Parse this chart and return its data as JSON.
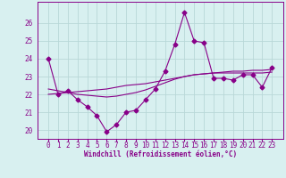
{
  "xlabel": "Windchill (Refroidissement éolien,°C)",
  "background_color": "#d8f0f0",
  "grid_color": "#b8d8d8",
  "line_color": "#880088",
  "hours": [
    0,
    1,
    2,
    3,
    4,
    5,
    6,
    7,
    8,
    9,
    10,
    11,
    12,
    13,
    14,
    15,
    16,
    17,
    18,
    19,
    20,
    21,
    22,
    23
  ],
  "main_values": [
    24.0,
    22.0,
    22.2,
    21.7,
    21.3,
    20.8,
    19.9,
    20.3,
    21.0,
    21.1,
    21.7,
    22.3,
    23.3,
    24.8,
    26.6,
    25.0,
    24.9,
    22.9,
    22.9,
    22.8,
    23.1,
    23.1,
    22.4,
    23.5
  ],
  "smooth1": [
    22.0,
    22.05,
    22.1,
    22.15,
    22.2,
    22.25,
    22.3,
    22.4,
    22.5,
    22.55,
    22.6,
    22.7,
    22.8,
    22.9,
    23.0,
    23.1,
    23.15,
    23.2,
    23.25,
    23.3,
    23.3,
    23.35,
    23.35,
    23.4
  ],
  "smooth2": [
    22.3,
    22.2,
    22.1,
    22.0,
    21.95,
    21.9,
    21.85,
    21.9,
    22.0,
    22.1,
    22.25,
    22.45,
    22.65,
    22.85,
    23.0,
    23.1,
    23.15,
    23.2,
    23.2,
    23.2,
    23.2,
    23.2,
    23.2,
    23.25
  ],
  "ylim_min": 19.5,
  "ylim_max": 27.2,
  "yticks": [
    20,
    21,
    22,
    23,
    24,
    25,
    26
  ],
  "marker": "D",
  "markersize": 2.5,
  "linewidth": 0.8,
  "tick_fontsize": 5.5,
  "xlabel_fontsize": 5.5
}
